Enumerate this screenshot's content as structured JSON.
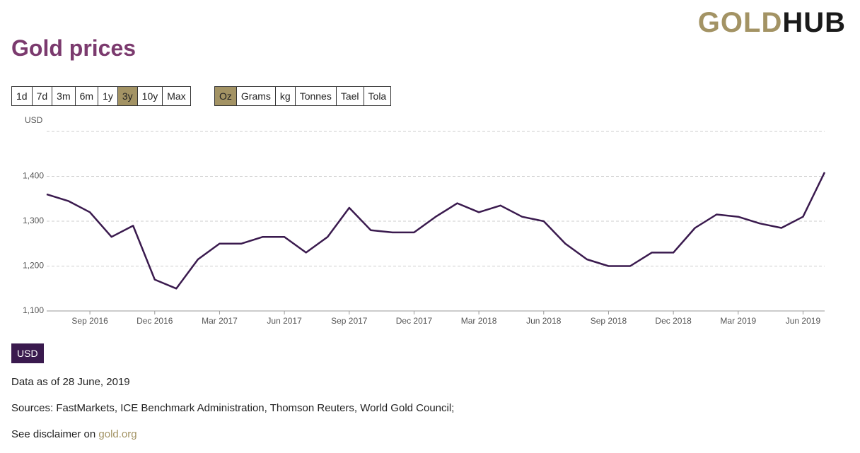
{
  "logo": {
    "left": "GOLD",
    "right": "HUB"
  },
  "page_title": "Gold prices",
  "controls": {
    "ranges": [
      "1d",
      "7d",
      "3m",
      "6m",
      "1y",
      "3y",
      "10y",
      "Max"
    ],
    "active_range": 5,
    "units": [
      "Oz",
      "Grams",
      "kg",
      "Tonnes",
      "Tael",
      "Tola"
    ],
    "active_unit": 0
  },
  "chart_data": {
    "type": "line",
    "y_label": "USD",
    "x": [
      "2016-07",
      "2016-08",
      "2016-09",
      "2016-10",
      "2016-11",
      "2016-12",
      "2017-01",
      "2017-02",
      "2017-03",
      "2017-04",
      "2017-05",
      "2017-06",
      "2017-07",
      "2017-08",
      "2017-09",
      "2017-10",
      "2017-11",
      "2017-12",
      "2018-01",
      "2018-02",
      "2018-03",
      "2018-04",
      "2018-05",
      "2018-06",
      "2018-07",
      "2018-08",
      "2018-09",
      "2018-10",
      "2018-11",
      "2018-12",
      "2019-01",
      "2019-02",
      "2019-03",
      "2019-04",
      "2019-05",
      "2019-06",
      "2019-07"
    ],
    "series": [
      {
        "name": "USD",
        "color": "#3a1a4e",
        "values": [
          1360,
          1345,
          1320,
          1265,
          1290,
          1170,
          1150,
          1215,
          1250,
          1250,
          1265,
          1265,
          1230,
          1265,
          1330,
          1280,
          1275,
          1275,
          1310,
          1340,
          1320,
          1335,
          1310,
          1300,
          1250,
          1215,
          1200,
          1200,
          1230,
          1230,
          1285,
          1315,
          1310,
          1295,
          1285,
          1310,
          1409
        ]
      }
    ],
    "xlim": [
      "2016-07",
      "2019-07"
    ],
    "xticks": [
      {
        "value": "2016-09",
        "label": "Sep 2016"
      },
      {
        "value": "2016-12",
        "label": "Dec 2016"
      },
      {
        "value": "2017-03",
        "label": "Mar 2017"
      },
      {
        "value": "2017-06",
        "label": "Jun 2017"
      },
      {
        "value": "2017-09",
        "label": "Sep 2017"
      },
      {
        "value": "2017-12",
        "label": "Dec 2017"
      },
      {
        "value": "2018-03",
        "label": "Mar 2018"
      },
      {
        "value": "2018-06",
        "label": "Jun 2018"
      },
      {
        "value": "2018-09",
        "label": "Sep 2018"
      },
      {
        "value": "2018-12",
        "label": "Dec 2018"
      },
      {
        "value": "2019-03",
        "label": "Mar 2019"
      },
      {
        "value": "2019-06",
        "label": "Jun 2019"
      }
    ],
    "ylim": [
      1100,
      1500
    ],
    "yticks": [
      {
        "value": 1100,
        "label": "1,100"
      },
      {
        "value": 1200,
        "label": "1,200"
      },
      {
        "value": 1300,
        "label": "1,300"
      },
      {
        "value": 1400,
        "label": "1,400"
      }
    ],
    "grid": true
  },
  "footer": {
    "as_of": "Data as of 28 June, 2019",
    "sources": "Sources: FastMarkets, ICE Benchmark Administration, Thomson Reuters, World Gold Council;",
    "disclaimer": "See disclaimer on",
    "link": "gold.org"
  }
}
